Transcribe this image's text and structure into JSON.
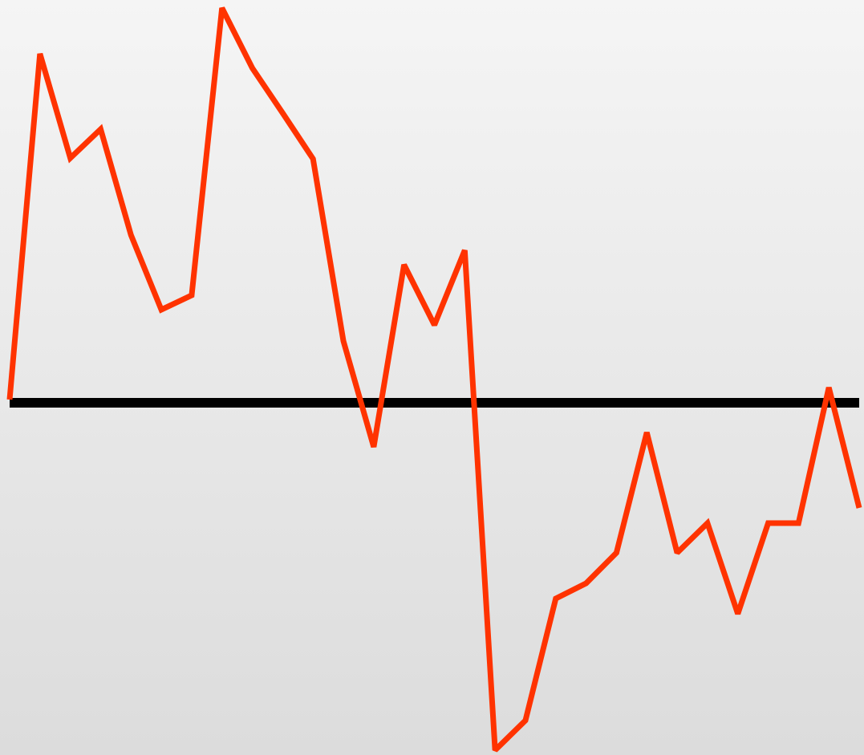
{
  "chart_data": {
    "type": "line",
    "categories": [
      null,
      null,
      null,
      null,
      null,
      null,
      null,
      null,
      null,
      null,
      null,
      null,
      null,
      null,
      null,
      null,
      null,
      null,
      null,
      null,
      null,
      null,
      null,
      null,
      null,
      null,
      null,
      null,
      null
    ],
    "values": [
      0.4,
      43.5,
      30.5,
      34.1,
      20.9,
      11.6,
      13.4,
      49.2,
      41.7,
      36.1,
      30.4,
      7.7,
      -5.5,
      17.2,
      9.7,
      19.0,
      -43.3,
      -39.6,
      -24.4,
      -22.5,
      -18.7,
      -3.7,
      -18.7,
      -15.0,
      -26.3,
      -15.0,
      -15.0,
      1.9,
      -13.1
    ],
    "color": "#ff3300",
    "ylim": [
      -43.9,
      50.2
    ],
    "reference_line": 0,
    "reference_color": "#000000"
  }
}
